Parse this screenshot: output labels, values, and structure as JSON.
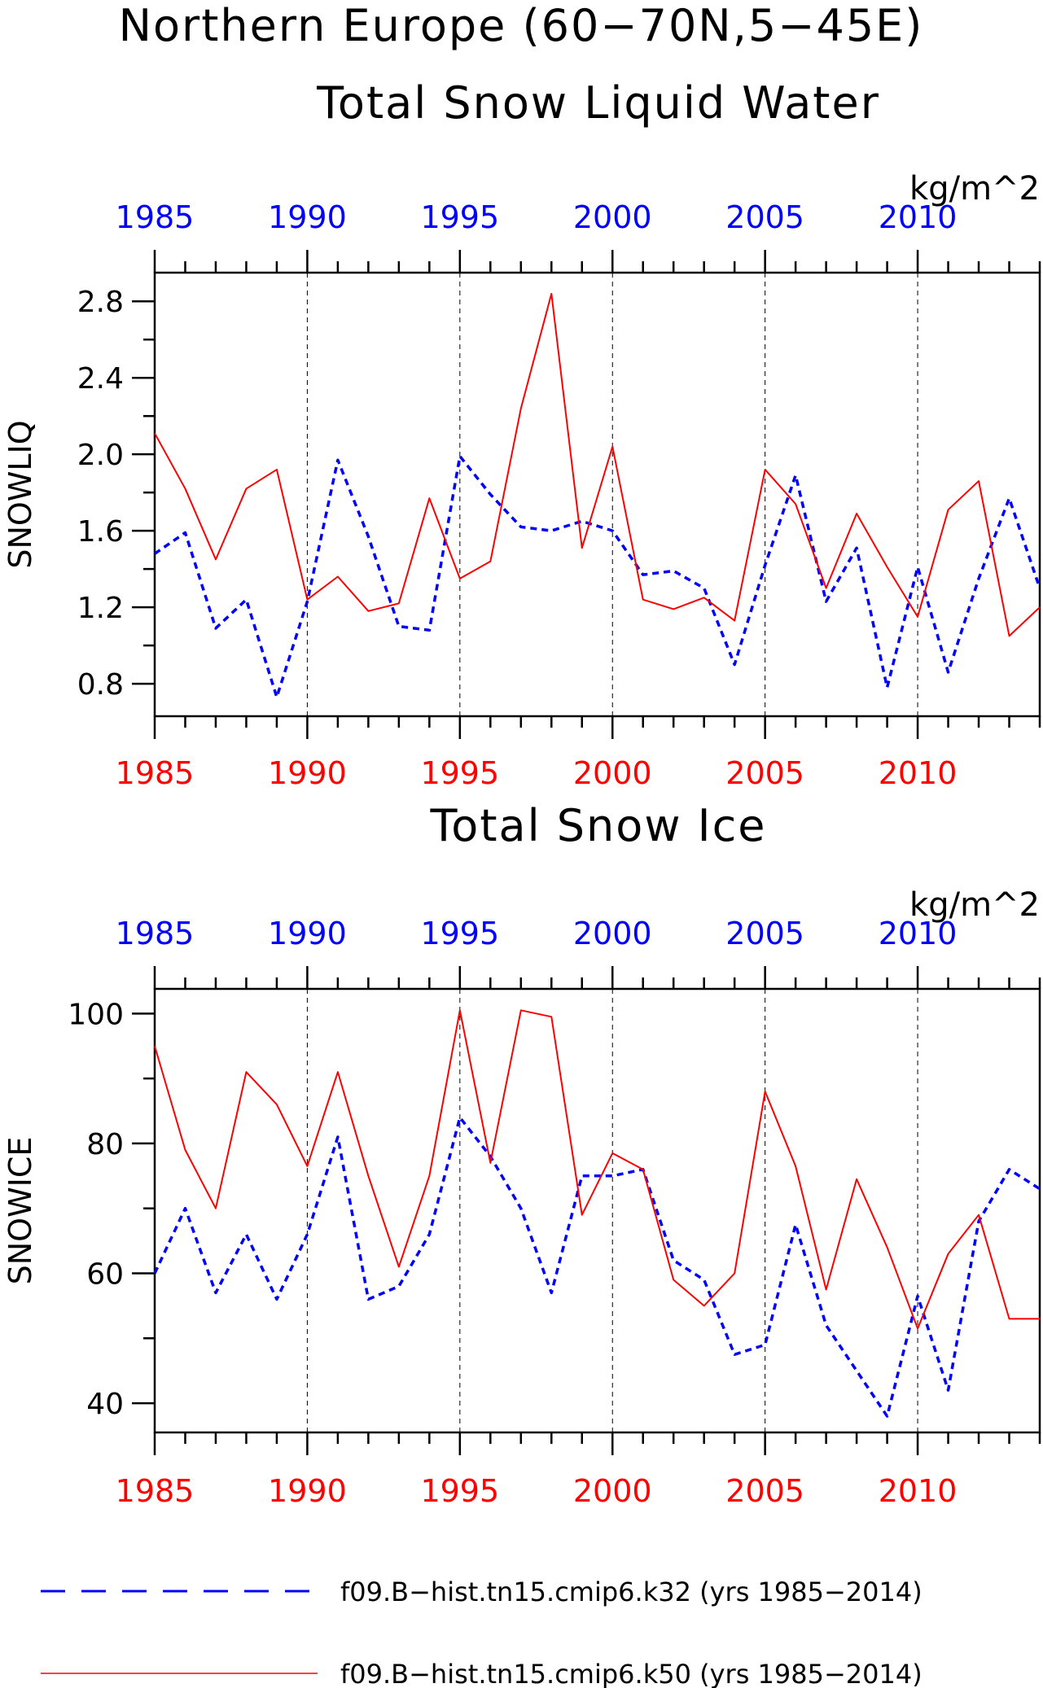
{
  "figure": {
    "title_line1": "Northern Europe (60−70N,5−45E)"
  },
  "colors": {
    "k32": "#0000ff",
    "k50": "#ff0000",
    "axis": "#000000",
    "grid": "#000000"
  },
  "legend": {
    "entries": [
      {
        "label": "f09.B−hist.tn15.cmip6.k32 (yrs 1985−2014)",
        "style": "dashed",
        "color": "#0000ff"
      },
      {
        "label": "f09.B−hist.tn15.cmip6.k50 (yrs 1985−2014)",
        "style": "solid",
        "color": "#ff0000"
      }
    ]
  },
  "chart_data": [
    {
      "type": "line",
      "title": "Total Snow Liquid Water",
      "units": "kg/m^2",
      "ylabel": "SNOWLIQ",
      "xlabel": "",
      "xlim": [
        1985,
        2014
      ],
      "ylim": [
        0.63,
        2.95
      ],
      "x_ticks": [
        1985,
        1990,
        1995,
        2000,
        2005,
        2010
      ],
      "y_ticks": [
        "0.8",
        "1.2",
        "1.6",
        "2.0",
        "2.4",
        "2.8"
      ],
      "vertical_grid": [
        1990,
        1995,
        2000,
        2005,
        2010
      ],
      "x": [
        1985,
        1986,
        1987,
        1988,
        1989,
        1990,
        1991,
        1992,
        1993,
        1994,
        1995,
        1996,
        1997,
        1998,
        1999,
        2000,
        2001,
        2002,
        2003,
        2004,
        2005,
        2006,
        2007,
        2008,
        2009,
        2010,
        2011,
        2012,
        2013,
        2014
      ],
      "series": [
        {
          "name": "f09.B−hist.tn15.cmip6.k32",
          "style": "dashed",
          "color": "#0000ff",
          "values": [
            1.48,
            1.59,
            1.09,
            1.24,
            0.73,
            1.23,
            1.97,
            1.57,
            1.1,
            1.08,
            1.99,
            1.79,
            1.62,
            1.6,
            1.65,
            1.6,
            1.37,
            1.39,
            1.3,
            0.9,
            1.42,
            1.89,
            1.23,
            1.51,
            0.78,
            1.41,
            0.86,
            1.35,
            1.77,
            1.3
          ]
        },
        {
          "name": "f09.B−hist.tn15.cmip6.k50",
          "style": "solid",
          "color": "#ff0000",
          "values": [
            2.11,
            1.82,
            1.45,
            1.82,
            1.92,
            1.24,
            1.36,
            1.18,
            1.22,
            1.77,
            1.35,
            1.44,
            2.24,
            2.84,
            1.51,
            2.04,
            1.24,
            1.19,
            1.25,
            1.13,
            1.92,
            1.74,
            1.3,
            1.69,
            1.41,
            1.15,
            1.71,
            1.86,
            1.05,
            1.2
          ]
        }
      ]
    },
    {
      "type": "line",
      "title": "Total Snow Ice",
      "units": "kg/m^2",
      "ylabel": "SNOWICE",
      "xlabel": "",
      "xlim": [
        1985,
        2014
      ],
      "ylim": [
        35.5,
        103.8
      ],
      "x_ticks": [
        1985,
        1990,
        1995,
        2000,
        2005,
        2010
      ],
      "y_ticks": [
        "40",
        "60",
        "80",
        "100"
      ],
      "vertical_grid": [
        1990,
        1995,
        2000,
        2005,
        2010
      ],
      "x": [
        1985,
        1986,
        1987,
        1988,
        1989,
        1990,
        1991,
        1992,
        1993,
        1994,
        1995,
        1996,
        1997,
        1998,
        1999,
        2000,
        2001,
        2002,
        2003,
        2004,
        2005,
        2006,
        2007,
        2008,
        2009,
        2010,
        2011,
        2012,
        2013,
        2014
      ],
      "series": [
        {
          "name": "f09.B−hist.tn15.cmip6.k32",
          "style": "dashed",
          "color": "#0000ff",
          "values": [
            60,
            70,
            57,
            66,
            56,
            66,
            81,
            56,
            58,
            66,
            84,
            78,
            70,
            57,
            75,
            75,
            76,
            62,
            59,
            47.5,
            49,
            67.5,
            52,
            45,
            38,
            56.5,
            42,
            68,
            76,
            73
          ]
        },
        {
          "name": "f09.B−hist.tn15.cmip6.k50",
          "style": "solid",
          "color": "#ff0000",
          "values": [
            95,
            79,
            70,
            91,
            86,
            76.5,
            91,
            75,
            61,
            75,
            100.5,
            77,
            100.5,
            99.5,
            69,
            78.5,
            76,
            59,
            55,
            60,
            88,
            76.5,
            57.5,
            74.5,
            64,
            51.5,
            63,
            69,
            53,
            53
          ]
        }
      ]
    }
  ]
}
